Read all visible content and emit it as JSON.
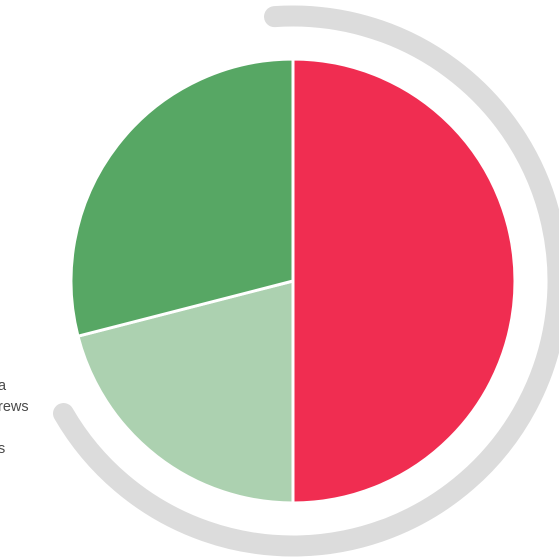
{
  "chart_data": {
    "type": "pie",
    "series": [
      {
        "values": [
          50,
          21,
          29
        ],
        "colors": [
          "#f02d51",
          "#acd1b0",
          "#57a764"
        ]
      }
    ],
    "start_angle_deg": 0,
    "direction": "clockwise",
    "outer_ring": {
      "color": "#dcdcdc",
      "start_angle_deg": 356,
      "end_angle_deg": 240
    }
  },
  "legend": {
    "line1": "a",
    "line2": "rews",
    "line3": "s"
  }
}
